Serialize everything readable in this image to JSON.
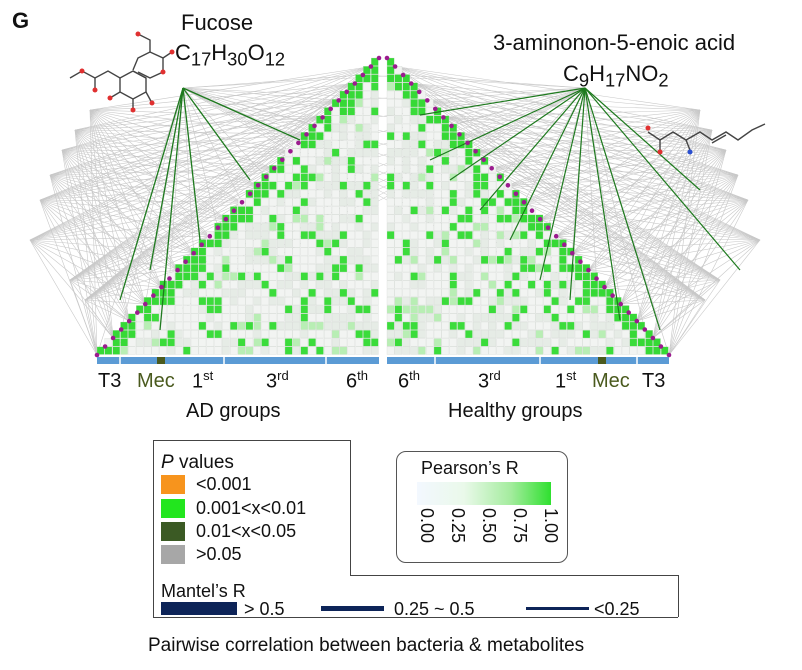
{
  "panel_letter": "G",
  "left_molecule": {
    "name": "Fucose",
    "formula_html": "C<sub>17</sub>H<sub>30</sub>O<sub>12</sub>"
  },
  "right_molecule": {
    "name": "3-aminonon-5-enoic acid",
    "formula_html": "C<sub>9</sub>H<sub>17</sub>NO<sub>2</sub>"
  },
  "left_groups": {
    "t3": "T3",
    "mec": "Mec",
    "first": "1",
    "first_sup": "st",
    "third": "3",
    "third_sup": "rd",
    "sixth": "6",
    "sixth_sup": "th"
  },
  "right_groups": {
    "sixth": "6",
    "sixth_sup": "th",
    "third": "3",
    "third_sup": "rd",
    "first": "1",
    "first_sup": "st",
    "mec": "Mec",
    "t3": "T3"
  },
  "left_title": "AD groups",
  "right_title": "Healthy groups",
  "p_legend": {
    "title_italic": "P",
    "title_rest": " values",
    "items": [
      {
        "label": "<0.001",
        "color": "#f7941d"
      },
      {
        "label": "0.001<x<0.01",
        "color": "#22e61e"
      },
      {
        "label": "0.01<x<0.05",
        "color": "#3b5a24"
      },
      {
        "label": ">0.05",
        "color": "#a7a7a7"
      }
    ]
  },
  "pearson": {
    "title": "Pearson’s R",
    "ticks": [
      "0.00",
      "0.25",
      "0.50",
      "0.75",
      "1.00"
    ]
  },
  "mantel": {
    "title": "Mantel’s R",
    "items": [
      {
        "label": "> 0.5",
        "color": "#0d2458"
      },
      {
        "label": "0.25 ~ 0.5",
        "color": "#0d2458"
      },
      {
        "label": "<0.25",
        "color": "#0d2458"
      }
    ]
  },
  "footer": "Pairwise correlation between bacteria & metabolites",
  "colors": {
    "bar_blue": "#5b9bd5",
    "mec_bar": "#4a5a1e",
    "dot": "#9b1b8e",
    "edge_gray": "#c8c8c8",
    "edge_green": "#1e7a1e"
  }
}
